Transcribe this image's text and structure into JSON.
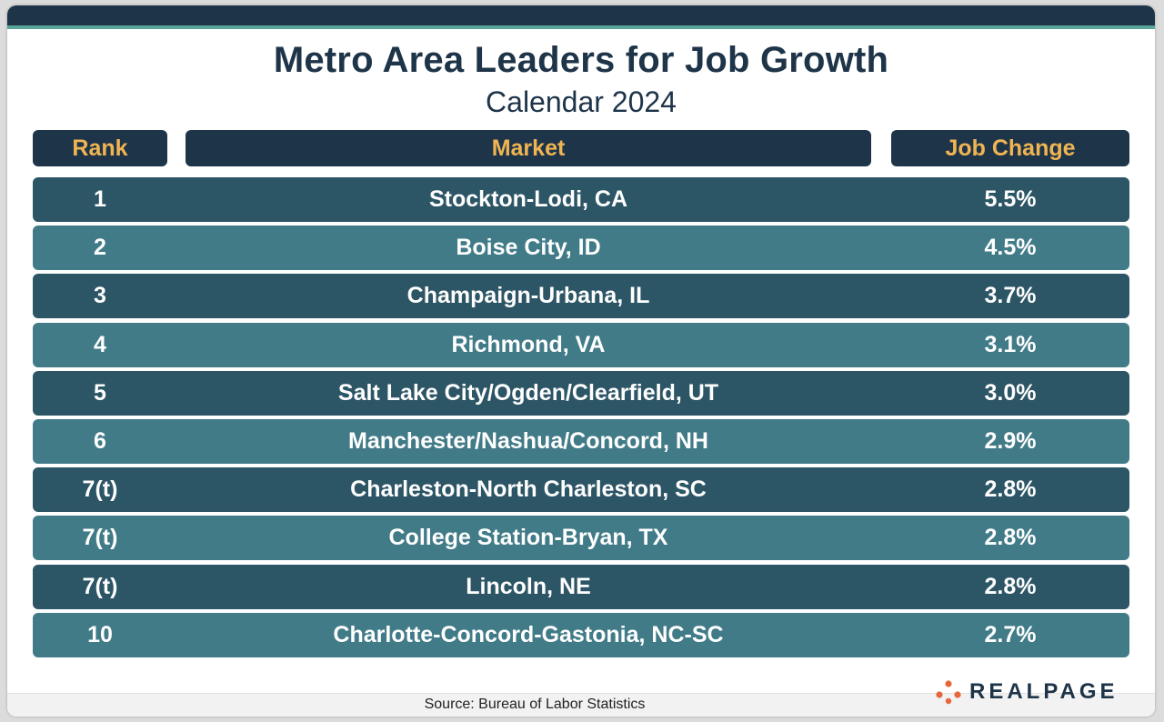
{
  "chart_data": {
    "type": "table",
    "title": "Metro Area Leaders for Job Growth",
    "subtitle": "Calendar 2024",
    "columns": [
      "Rank",
      "Market",
      "Job Change"
    ],
    "rows": [
      {
        "rank": "1",
        "market": "Stockton-Lodi, CA",
        "change": "5.5%"
      },
      {
        "rank": "2",
        "market": "Boise City, ID",
        "change": "4.5%"
      },
      {
        "rank": "3",
        "market": "Champaign-Urbana, IL",
        "change": "3.7%"
      },
      {
        "rank": "4",
        "market": "Richmond, VA",
        "change": "3.1%"
      },
      {
        "rank": "5",
        "market": "Salt Lake City/Ogden/Clearfield, UT",
        "change": "3.0%"
      },
      {
        "rank": "6",
        "market": "Manchester/Nashua/Concord, NH",
        "change": "2.9%"
      },
      {
        "rank": "7(t)",
        "market": "Charleston-North Charleston, SC",
        "change": "2.8%"
      },
      {
        "rank": "7(t)",
        "market": "College Station-Bryan, TX",
        "change": "2.8%"
      },
      {
        "rank": "7(t)",
        "market": "Lincoln, NE",
        "change": "2.8%"
      },
      {
        "rank": "10",
        "market": "Charlotte-Concord-Gastonia, NC-SC",
        "change": "2.7%"
      }
    ],
    "source": "Source: Bureau of Labor Statistics"
  },
  "branding": {
    "logo_text": "REALPAGE",
    "logo_icon": "dots-logo-icon"
  },
  "colors": {
    "navy": "#1e3449",
    "header_text": "#f0b552",
    "row_dark": "#2c5566",
    "row_light": "#417b88",
    "accent_teal": "#5aa59a",
    "logo_orange": "#e8663c"
  }
}
